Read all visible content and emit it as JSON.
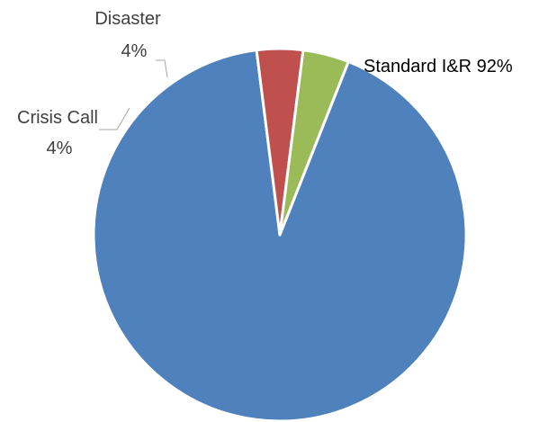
{
  "chart_data": {
    "type": "pie",
    "title": "",
    "series": [
      {
        "slices": [
          {
            "name": "Standard I&R",
            "value": 92,
            "color": "#4F81BD",
            "label_text": "Standard I&R 92%"
          },
          {
            "name": "Crisis Call",
            "value": 4,
            "color": "#C0504D",
            "label_line1": "Crisis Call",
            "label_line2": "4%"
          },
          {
            "name": "Disaster",
            "value": 4,
            "color": "#9BBB59",
            "label_line1": "Disaster",
            "label_line2": "4%"
          }
        ]
      }
    ],
    "legend": "none",
    "start_angle_deg": 21.6,
    "direction": "clockwise"
  },
  "colors": {
    "slice_border": "#FFFFFF",
    "leader_line": "#A6A6A6",
    "label_dark": "#000000",
    "label_gray": "#404040"
  }
}
